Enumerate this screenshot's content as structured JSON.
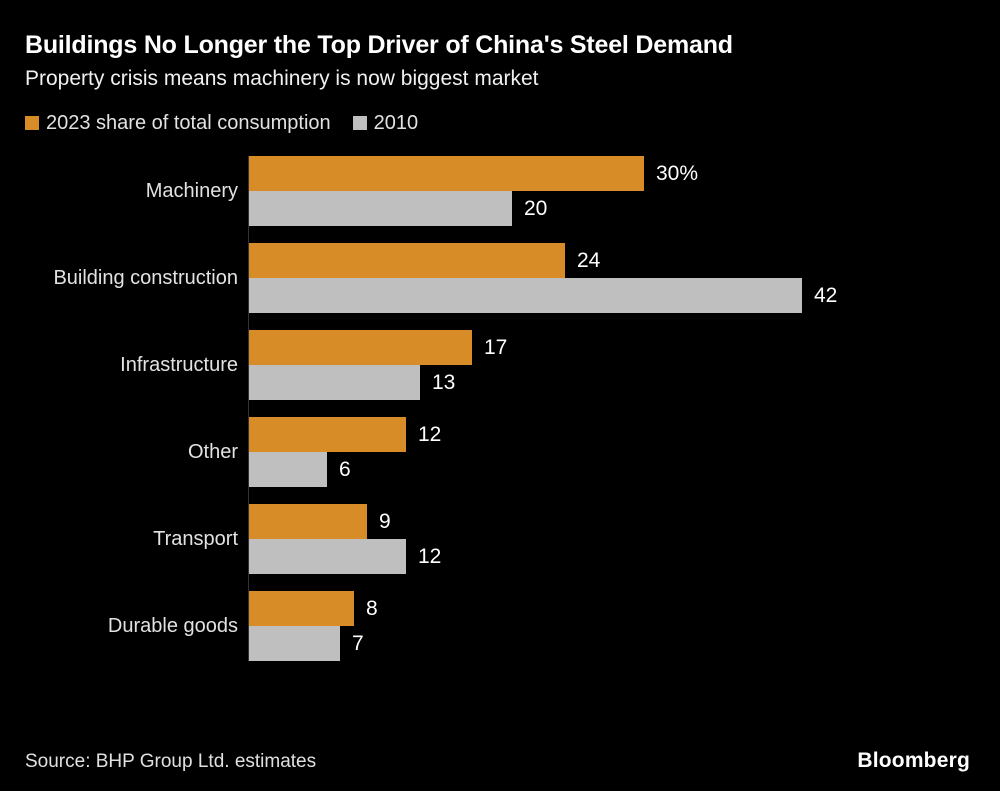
{
  "header": {
    "title": "Buildings No Longer the Top Driver of China's Steel Demand",
    "subtitle": "Property crisis means machinery is now biggest market"
  },
  "legend": [
    {
      "label": "2023 share of total consumption",
      "color": "#D88C28"
    },
    {
      "label": "2010",
      "color": "#BFBFBF"
    }
  ],
  "chart_data": {
    "type": "bar",
    "orientation": "horizontal",
    "title": "Buildings No Longer the Top Driver of China's Steel Demand",
    "subtitle": "Property crisis means machinery is now biggest market",
    "unit": "% share of total consumption",
    "categories": [
      "Machinery",
      "Building construction",
      "Infrastructure",
      "Other",
      "Transport",
      "Durable goods"
    ],
    "series": [
      {
        "name": "2023 share of total consumption",
        "color": "#D88C28",
        "values": [
          30,
          24,
          17,
          12,
          9,
          8
        ],
        "value_labels": [
          "30%",
          "24",
          "17",
          "12",
          "9",
          "8"
        ]
      },
      {
        "name": "2010",
        "color": "#BFBFBF",
        "values": [
          20,
          42,
          13,
          6,
          12,
          7
        ],
        "value_labels": [
          "20",
          "42",
          "13",
          "6",
          "12",
          "7"
        ]
      }
    ],
    "xlim": [
      0,
      45
    ],
    "grid": false,
    "legend_position": "top-left",
    "value_labels_shown": true
  },
  "footer": {
    "source": "Source: BHP Group Ltd. estimates",
    "brand": "Bloomberg"
  }
}
